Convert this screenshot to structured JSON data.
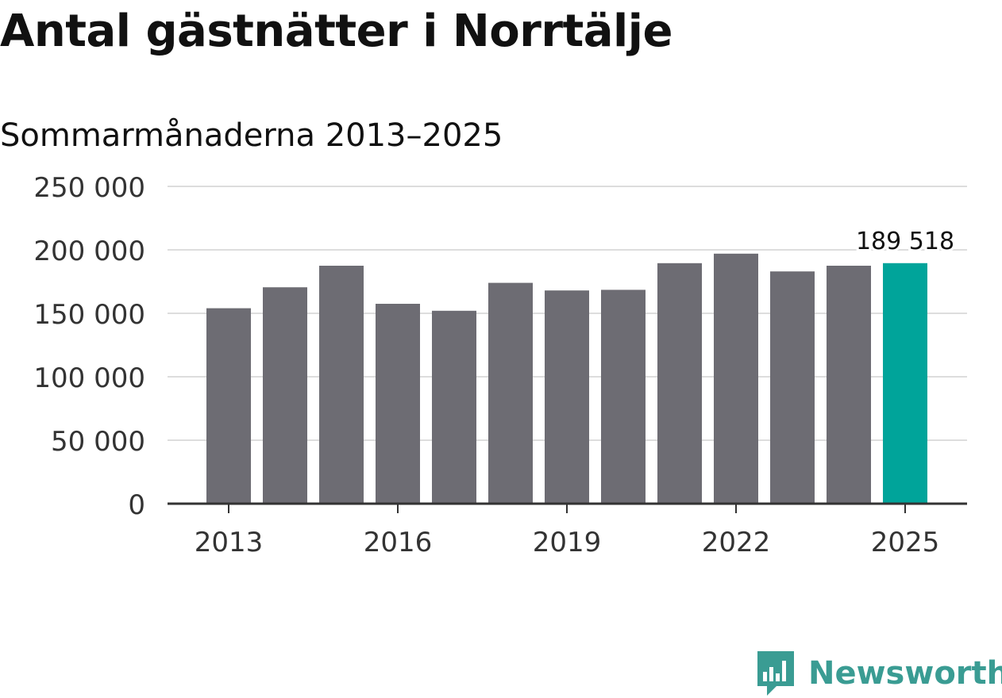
{
  "title": "Antal gästnätter i Norrtälje",
  "subtitle": "Sommarmånaderna 2013–2025",
  "brand": {
    "name": "Newsworthy",
    "color": "#3a9c93",
    "icon": "newsworthy-logo-icon"
  },
  "colors": {
    "bar": "#6d6c73",
    "highlight": "#00a49a",
    "grid": "#dddddd",
    "axis": "#333333",
    "text": "#1a1a1a"
  },
  "chart_data": {
    "type": "bar",
    "categories": [
      "2013",
      "2014",
      "2015",
      "2016",
      "2017",
      "2018",
      "2019",
      "2020",
      "2021",
      "2022",
      "2023",
      "2024",
      "2025"
    ],
    "values": [
      154000,
      170500,
      187500,
      157500,
      152000,
      174000,
      168000,
      168500,
      189500,
      197000,
      183000,
      187500,
      189518
    ],
    "highlight_index": 12,
    "data_labels": [
      {
        "index": 12,
        "text": "189 518"
      }
    ],
    "xticks": [
      "2013",
      "2016",
      "2019",
      "2022",
      "2025"
    ],
    "yticks": [
      0,
      50000,
      100000,
      150000,
      200000,
      250000
    ],
    "ytick_labels": [
      "0",
      "50 000",
      "100 000",
      "150 000",
      "200 000",
      "250 000"
    ],
    "ylim": [
      0,
      250000
    ],
    "grid": true,
    "xlabel": "",
    "ylabel": ""
  }
}
